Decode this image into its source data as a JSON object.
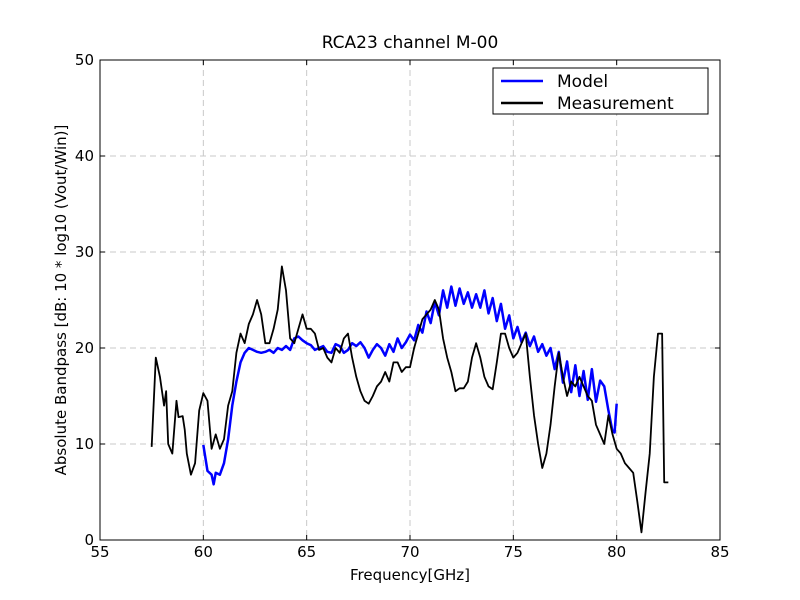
{
  "chart_data": {
    "type": "line",
    "title": "RCA23 channel M-00",
    "xlabel": "Frequency[GHz]",
    "ylabel": "Absolute Bandpass [dB: 10 * log10 (Vout/Win)]",
    "xlim": [
      55,
      85
    ],
    "xticks": [
      55,
      60,
      65,
      70,
      75,
      80,
      85
    ],
    "ylim": [
      0,
      50
    ],
    "yticks": [
      0,
      10,
      20,
      30,
      40,
      50
    ],
    "grid": true,
    "legend": "upper right",
    "series": [
      {
        "name": "Model",
        "color": "#0000ff",
        "x": [
          60.0,
          60.2,
          60.4,
          60.5,
          60.6,
          60.8,
          61.0,
          61.2,
          61.4,
          61.6,
          61.8,
          62.0,
          62.2,
          62.4,
          62.6,
          62.8,
          63.0,
          63.2,
          63.4,
          63.6,
          63.8,
          64.0,
          64.2,
          64.4,
          64.6,
          64.8,
          65.0,
          65.2,
          65.4,
          65.6,
          65.8,
          66.0,
          66.2,
          66.4,
          66.6,
          66.8,
          67.0,
          67.2,
          67.4,
          67.6,
          67.8,
          68.0,
          68.2,
          68.4,
          68.6,
          68.8,
          69.0,
          69.2,
          69.4,
          69.6,
          69.8,
          70.0,
          70.2,
          70.4,
          70.6,
          70.8,
          71.0,
          71.2,
          71.4,
          71.6,
          71.8,
          72.0,
          72.2,
          72.4,
          72.6,
          72.8,
          73.0,
          73.2,
          73.4,
          73.6,
          73.8,
          74.0,
          74.2,
          74.4,
          74.6,
          74.8,
          75.0,
          75.2,
          75.4,
          75.6,
          75.8,
          76.0,
          76.2,
          76.4,
          76.6,
          76.8,
          77.0,
          77.2,
          77.4,
          77.6,
          77.8,
          78.0,
          78.2,
          78.4,
          78.6,
          78.8,
          79.0,
          79.2,
          79.4,
          79.6,
          79.8,
          79.9,
          80.0
        ],
        "values": [
          9.9,
          7.2,
          6.8,
          5.8,
          7,
          6.8,
          8,
          10.5,
          14,
          16.5,
          18.5,
          19.5,
          20,
          19.8,
          19.6,
          19.5,
          19.6,
          19.8,
          19.5,
          20,
          19.8,
          20.2,
          19.8,
          21,
          21.2,
          20.8,
          20.5,
          20.3,
          19.8,
          20,
          20.2,
          19.6,
          19.5,
          20.4,
          20.2,
          19.5,
          19.8,
          20.5,
          20.2,
          20.6,
          20,
          19,
          19.8,
          20.4,
          20,
          19.2,
          20.4,
          19.6,
          21,
          20,
          20.6,
          21.4,
          20.8,
          22.4,
          21.6,
          23.8,
          22.6,
          24.8,
          23.4,
          26,
          24.2,
          26.4,
          24.4,
          26.2,
          24.6,
          25.8,
          24.2,
          25.6,
          24.2,
          26,
          23.6,
          25.2,
          22.8,
          24.6,
          22,
          23.4,
          21,
          22.2,
          20.6,
          21.6,
          20.2,
          21.2,
          19.6,
          20.4,
          19.2,
          20,
          17.8,
          19.6,
          16.4,
          18.6,
          15.4,
          18.2,
          15,
          17.6,
          14.6,
          17.8,
          14.4,
          16.6,
          16,
          13.5,
          11.3,
          11.2,
          14.2
        ]
      },
      {
        "name": "Measurement",
        "color": "#000000",
        "x": [
          57.5,
          57.7,
          57.9,
          58.1,
          58.2,
          58.3,
          58.5,
          58.7,
          58.8,
          59.0,
          59.1,
          59.2,
          59.4,
          59.6,
          59.8,
          60.0,
          60.2,
          60.4,
          60.6,
          60.8,
          61.0,
          61.2,
          61.4,
          61.6,
          61.8,
          62.0,
          62.2,
          62.4,
          62.6,
          62.8,
          63.0,
          63.2,
          63.4,
          63.6,
          63.8,
          64.0,
          64.2,
          64.4,
          64.6,
          64.8,
          65.0,
          65.2,
          65.4,
          65.6,
          65.8,
          66.0,
          66.2,
          66.4,
          66.6,
          66.8,
          67.0,
          67.2,
          67.4,
          67.6,
          67.8,
          68.0,
          68.2,
          68.4,
          68.6,
          68.8,
          69.0,
          69.2,
          69.4,
          69.6,
          69.8,
          70.0,
          70.2,
          70.4,
          70.6,
          70.8,
          71.0,
          71.2,
          71.4,
          71.6,
          71.8,
          72.0,
          72.2,
          72.4,
          72.6,
          72.8,
          73.0,
          73.2,
          73.4,
          73.6,
          73.8,
          74.0,
          74.2,
          74.4,
          74.6,
          74.8,
          75.0,
          75.2,
          75.4,
          75.6,
          75.8,
          76.0,
          76.2,
          76.4,
          76.6,
          76.8,
          77.0,
          77.2,
          77.4,
          77.6,
          77.8,
          78.0,
          78.2,
          78.4,
          78.6,
          78.8,
          79.0,
          79.2,
          79.4,
          79.6,
          79.8,
          80.0,
          80.2,
          80.4,
          80.6,
          80.8,
          81.0,
          81.2,
          81.4,
          81.6,
          81.8,
          82.0,
          82.2,
          82.3,
          82.5
        ],
        "values": [
          9.7,
          19,
          17,
          14,
          15.5,
          10,
          9,
          14.5,
          12.8,
          12.9,
          11.5,
          9,
          6.8,
          8,
          13.5,
          15.3,
          14.5,
          9.5,
          11,
          9.5,
          10.5,
          14,
          15.5,
          19.5,
          21.5,
          20.5,
          22.5,
          23.5,
          25,
          23.5,
          20.5,
          20.5,
          22,
          24,
          28.5,
          26,
          21,
          20.5,
          22,
          23.5,
          22,
          22,
          21.5,
          19.8,
          20,
          19,
          18.5,
          20,
          19.5,
          21,
          21.5,
          19,
          17,
          15.5,
          14.5,
          14.2,
          15,
          16,
          16.5,
          17.5,
          16.5,
          18.5,
          18.5,
          17.5,
          18,
          18,
          20,
          21.5,
          23,
          23.5,
          24,
          25,
          24,
          21,
          19,
          17.5,
          15.5,
          15.8,
          15.8,
          16.5,
          19,
          20.5,
          19,
          17,
          16,
          15.7,
          18.5,
          21.5,
          21.5,
          20,
          19,
          19.5,
          20.5,
          21.5,
          17,
          13,
          10,
          7.5,
          9,
          12,
          16,
          19.5,
          17,
          15,
          16.5,
          16,
          17,
          16,
          15,
          14.5,
          12,
          11,
          10,
          13,
          11,
          9.5,
          9,
          8,
          7.5,
          7,
          4,
          0.8,
          5,
          9,
          17,
          21.5,
          21.5,
          6,
          6
        ]
      }
    ]
  }
}
